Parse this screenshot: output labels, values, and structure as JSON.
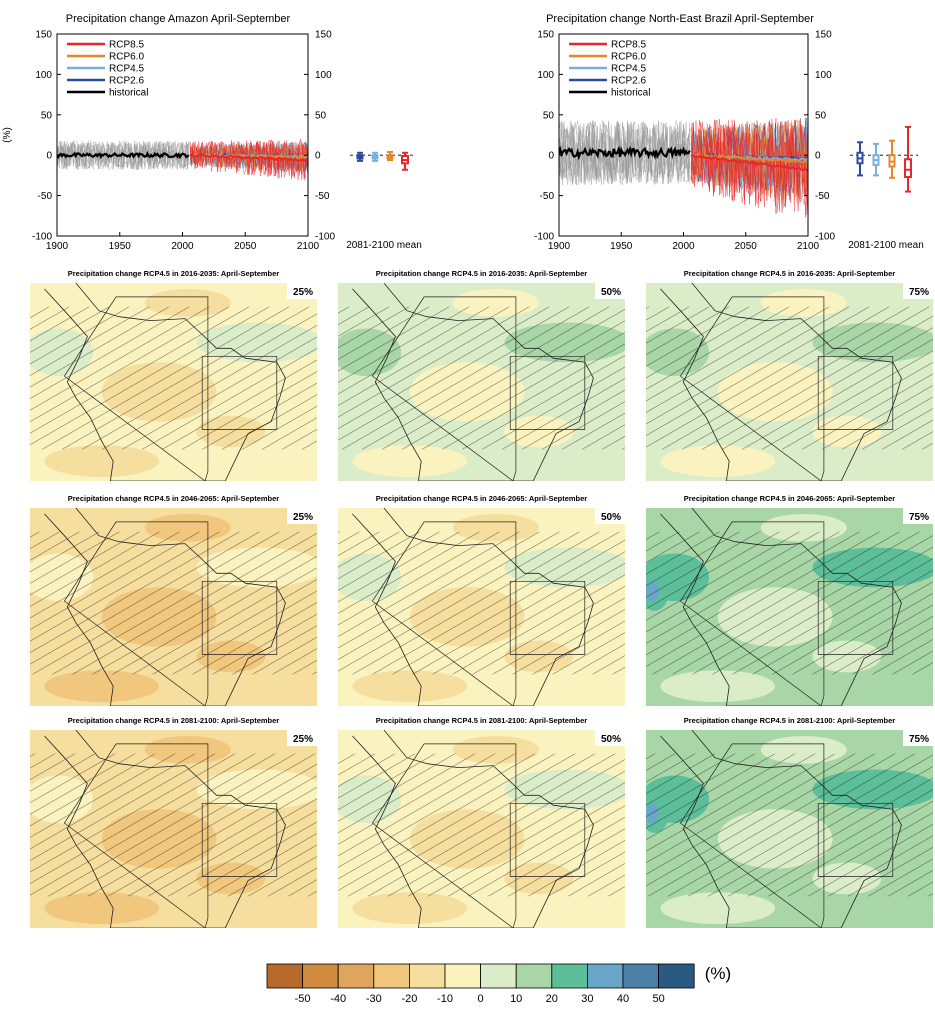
{
  "chart_data": [
    {
      "type": "line",
      "title": "Precipitation change Amazon April-September",
      "ylabel": "(%)",
      "xlim": [
        1900,
        2100
      ],
      "ylim": [
        -100,
        150
      ],
      "x_ticks": [
        "1900",
        "1950",
        "2000",
        "2050",
        "2100"
      ],
      "y_ticks": [
        "-100",
        "-50",
        "0",
        "50",
        "100",
        "150"
      ],
      "legend": [
        "RCP8.5",
        "RCP6.0",
        "RCP4.5",
        "RCP2.6",
        "historical"
      ],
      "legend_position": "top-left",
      "historical": {
        "x_range": [
          1900,
          2005
        ],
        "mean": 0,
        "spread": 18
      },
      "series": [
        {
          "name": "RCP8.5",
          "color": "#e8272a",
          "x_range": [
            2006,
            2100
          ],
          "mean_end": -6,
          "spread": 22
        },
        {
          "name": "RCP6.0",
          "color": "#e8842a",
          "x_range": [
            2006,
            2100
          ],
          "mean_end": -3,
          "spread": 16
        },
        {
          "name": "RCP4.5",
          "color": "#7aaedc",
          "x_range": [
            2006,
            2100
          ],
          "mean_end": -2,
          "spread": 16
        },
        {
          "name": "RCP2.6",
          "color": "#2c4a9e",
          "x_range": [
            2006,
            2100
          ],
          "mean_end": -2,
          "spread": 16
        }
      ],
      "period_mean_label": "2081-2100 mean",
      "period_mean_boxes": [
        {
          "name": "RCP2.6",
          "color": "#2c4a9e",
          "low": -7,
          "q1": -4,
          "median": -2,
          "q3": 0,
          "high": 3
        },
        {
          "name": "RCP4.5",
          "color": "#7aaedc",
          "low": -7,
          "q1": -4,
          "median": -2,
          "q3": 0,
          "high": 3
        },
        {
          "name": "RCP6.0",
          "color": "#e8842a",
          "low": -6,
          "q1": -4,
          "median": -2,
          "q3": 0,
          "high": 4
        },
        {
          "name": "RCP8.5",
          "color": "#e8272a",
          "low": -18,
          "q1": -10,
          "median": -6,
          "q3": -1,
          "high": 3
        }
      ]
    },
    {
      "type": "line",
      "title": "Precipitation change North-East Brazil April-September",
      "ylabel": "",
      "xlim": [
        1900,
        2100
      ],
      "ylim": [
        -100,
        150
      ],
      "x_ticks": [
        "1900",
        "1950",
        "2000",
        "2050",
        "2100"
      ],
      "y_ticks": [
        "-100",
        "-50",
        "0",
        "50",
        "100",
        "150"
      ],
      "legend": [
        "RCP8.5",
        "RCP6.0",
        "RCP4.5",
        "RCP2.6",
        "historical"
      ],
      "legend_position": "top-left",
      "historical": {
        "x_range": [
          1900,
          2005
        ],
        "mean": 3,
        "spread": 40
      },
      "series": [
        {
          "name": "RCP8.5",
          "color": "#e8272a",
          "x_range": [
            2006,
            2100
          ],
          "mean_end": -18,
          "spread": 55
        },
        {
          "name": "RCP6.0",
          "color": "#e8842a",
          "x_range": [
            2006,
            2100
          ],
          "mean_end": -8,
          "spread": 45
        },
        {
          "name": "RCP4.5",
          "color": "#7aaedc",
          "x_range": [
            2006,
            2100
          ],
          "mean_end": -6,
          "spread": 42
        },
        {
          "name": "RCP2.6",
          "color": "#2c4a9e",
          "x_range": [
            2006,
            2100
          ],
          "mean_end": -4,
          "spread": 42
        }
      ],
      "period_mean_label": "2081-2100 mean",
      "period_mean_boxes": [
        {
          "name": "RCP2.6",
          "color": "#2c4a9e",
          "low": -25,
          "q1": -10,
          "median": -4,
          "q3": 3,
          "high": 16
        },
        {
          "name": "RCP4.5",
          "color": "#7aaedc",
          "low": -25,
          "q1": -12,
          "median": -6,
          "q3": 0,
          "high": 14
        },
        {
          "name": "RCP6.0",
          "color": "#e8842a",
          "low": -28,
          "q1": -14,
          "median": -8,
          "q3": 0,
          "high": 18
        },
        {
          "name": "RCP8.5",
          "color": "#e8272a",
          "low": -45,
          "q1": -27,
          "median": -18,
          "q3": -5,
          "high": 35
        }
      ]
    },
    {
      "type": "heatmap",
      "panels": [
        {
          "title": "Precipitation change RCP4.5 in 2016-2035: April-September",
          "percentile": "25%",
          "level_index": 5
        },
        {
          "title": "Precipitation change RCP4.5 in 2016-2035: April-September",
          "percentile": "50%",
          "level_index": 6
        },
        {
          "title": "Precipitation change RCP4.5 in 2016-2035: April-September",
          "percentile": "75%",
          "level_index": 6
        },
        {
          "title": "Precipitation change RCP4.5 in 2046-2065: April-September",
          "percentile": "25%",
          "level_index": 4
        },
        {
          "title": "Precipitation change RCP4.5 in 2046-2065: April-September",
          "percentile": "50%",
          "level_index": 5
        },
        {
          "title": "Precipitation change RCP4.5 in 2046-2065: April-September",
          "percentile": "75%",
          "level_index": 7
        },
        {
          "title": "Precipitation change RCP4.5 in 2081-2100: April-September",
          "percentile": "25%",
          "level_index": 4
        },
        {
          "title": "Precipitation change RCP4.5 in 2081-2100: April-September",
          "percentile": "50%",
          "level_index": 5
        },
        {
          "title": "Precipitation change RCP4.5 in 2081-2100: April-September",
          "percentile": "75%",
          "level_index": 7
        }
      ],
      "colorbar": {
        "unit": "(%)",
        "labels": [
          "-50",
          "-40",
          "-30",
          "-20",
          "-10",
          "0",
          "10",
          "20",
          "30",
          "40",
          "50"
        ],
        "colors": [
          "#b76a2a",
          "#cf8a3e",
          "#e0a55c",
          "#f1c77e",
          "#f6de9e",
          "#fbf3bf",
          "#dbecc9",
          "#a8d6a6",
          "#5dbf9a",
          "#6aa6c8",
          "#4a80a8",
          "#2a5a82"
        ]
      }
    }
  ]
}
